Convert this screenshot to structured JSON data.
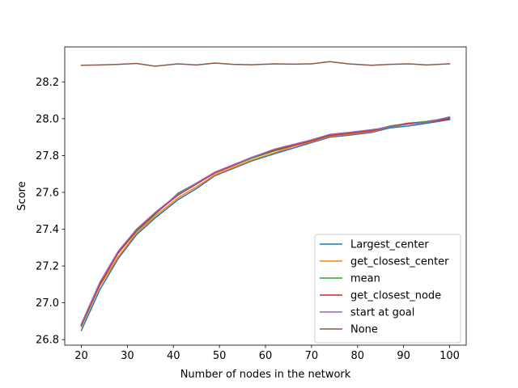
{
  "chart_data": {
    "type": "line",
    "title": "",
    "xlabel": "Number of nodes in the network",
    "ylabel": "Score",
    "xlim": [
      16.4,
      103.6
    ],
    "ylim": [
      26.77,
      28.39
    ],
    "xticks": [
      20,
      30,
      40,
      50,
      60,
      70,
      80,
      90,
      100
    ],
    "yticks": [
      26.8,
      27.0,
      27.2,
      27.4,
      27.6,
      27.8,
      28.0,
      28.2
    ],
    "xtick_labels": [
      "20",
      "30",
      "40",
      "50",
      "60",
      "70",
      "80",
      "90",
      "100"
    ],
    "ytick_labels": [
      "26.8",
      "27.0",
      "27.2",
      "27.4",
      "27.6",
      "27.8",
      "28.0",
      "28.2"
    ],
    "grid": false,
    "legend_position": "lower-right",
    "x": [
      20,
      24,
      28,
      32,
      36,
      41,
      45,
      49,
      53,
      57,
      62,
      66,
      70,
      74,
      78,
      83,
      87,
      91,
      95,
      100
    ],
    "series": [
      {
        "name": "Largest_center",
        "color": "#1f77b4",
        "values": [
          26.85,
          27.07,
          27.24,
          27.37,
          27.46,
          27.56,
          27.62,
          27.69,
          27.73,
          27.77,
          27.81,
          27.84,
          27.87,
          27.9,
          27.91,
          27.925,
          27.95,
          27.96,
          27.975,
          27.995
        ]
      },
      {
        "name": "get_closest_center",
        "color": "#ff7f0e",
        "values": [
          26.87,
          27.09,
          27.25,
          27.38,
          27.47,
          27.57,
          27.63,
          27.695,
          27.735,
          27.775,
          27.815,
          27.85,
          27.875,
          27.905,
          27.915,
          27.93,
          27.955,
          27.97,
          27.98,
          28.0
        ]
      },
      {
        "name": "mean",
        "color": "#2ca02c",
        "values": [
          26.875,
          27.1,
          27.27,
          27.39,
          27.48,
          27.595,
          27.65,
          27.705,
          27.745,
          27.785,
          27.825,
          27.855,
          27.88,
          27.91,
          27.92,
          27.935,
          27.96,
          27.975,
          27.985,
          28.005
        ]
      },
      {
        "name": "get_closest_node",
        "color": "#d62728",
        "values": [
          26.88,
          27.1,
          27.27,
          27.395,
          27.485,
          27.585,
          27.645,
          27.705,
          27.745,
          27.79,
          27.83,
          27.855,
          27.88,
          27.91,
          27.92,
          27.935,
          27.955,
          27.975,
          27.98,
          28.0
        ]
      },
      {
        "name": "start at goal",
        "color": "#9467bd",
        "values": [
          26.885,
          27.11,
          27.28,
          27.4,
          27.49,
          27.59,
          27.65,
          27.71,
          27.75,
          27.79,
          27.835,
          27.86,
          27.885,
          27.915,
          27.925,
          27.94,
          27.955,
          27.97,
          27.98,
          28.01
        ]
      },
      {
        "name": "None",
        "color": "#8c564b",
        "values": [
          28.29,
          28.292,
          28.295,
          28.3,
          28.285,
          28.298,
          28.292,
          28.302,
          28.295,
          28.293,
          28.298,
          28.296,
          28.298,
          28.31,
          28.298,
          28.29,
          28.295,
          28.298,
          28.292,
          28.298
        ]
      }
    ]
  }
}
